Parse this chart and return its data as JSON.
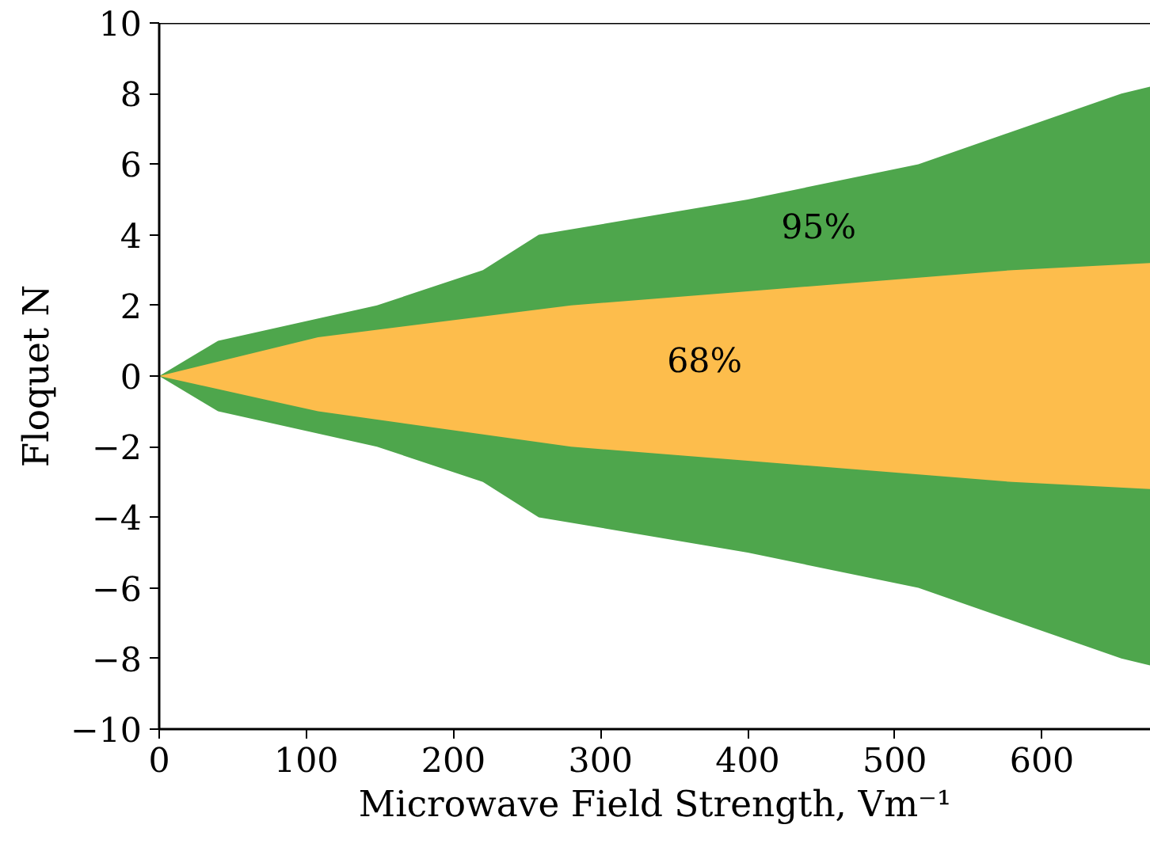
{
  "chart_data": {
    "type": "area",
    "xlabel": "Microwave Field Strength, Vm⁻¹",
    "ylabel": "Floquet N",
    "xlim": [
      0,
      674
    ],
    "ylim": [
      -10,
      10
    ],
    "xticks": [
      0,
      100,
      200,
      300,
      400,
      500,
      600
    ],
    "yticks": [
      {
        "value": -10,
        "label": "−10"
      },
      {
        "value": -8,
        "label": "−8"
      },
      {
        "value": -6,
        "label": "−6"
      },
      {
        "value": -4,
        "label": "−4"
      },
      {
        "value": -2,
        "label": "−2"
      },
      0,
      2,
      4,
      6,
      8,
      10
    ],
    "grid": false,
    "series": [
      {
        "color": "#4ea64c",
        "x": [
          0,
          40,
          148,
          220,
          258,
          400,
          516,
          654,
          674
        ],
        "values": [
          0,
          1.0,
          2.0,
          3.0,
          4.0,
          5.0,
          6.0,
          8.0,
          8.2
        ]
      },
      {
        "color": "#4ea64c",
        "x": [
          0,
          40,
          148,
          220,
          258,
          400,
          516,
          654,
          674
        ],
        "values": [
          0,
          -1.0,
          -2.0,
          -3.0,
          -4.0,
          -5.0,
          -6.0,
          -8.0,
          -8.2
        ]
      },
      {
        "color": "#fdbd4c",
        "x": [
          0,
          108,
          280,
          400,
          580,
          674
        ],
        "values": [
          0,
          1.1,
          2.0,
          2.4,
          3.0,
          3.2
        ]
      },
      {
        "color": "#fdbd4c",
        "x": [
          0,
          108,
          280,
          400,
          580,
          674
        ],
        "values": [
          0,
          -1.0,
          -2.0,
          -2.4,
          -3.0,
          -3.2
        ]
      }
    ],
    "annotations": [
      "95%",
      "68%"
    ]
  }
}
